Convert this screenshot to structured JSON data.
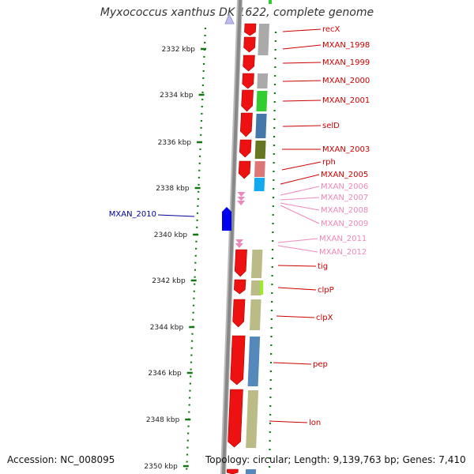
{
  "title": "Myxococcus xanthus DK 1622, complete genome",
  "footer": {
    "accession": "Accession: NC_008095",
    "topology": "Topology: circular; Length: 9,139,763 bp; Genes: 7,410"
  },
  "scale": {
    "unit": "kbp",
    "ticks": [
      {
        "label": "2332 kbp"
      },
      {
        "label": "2334 kbp"
      },
      {
        "label": "2336 kbp"
      },
      {
        "label": "2338 kbp"
      },
      {
        "label": "2340 kbp"
      },
      {
        "label": "2342 kbp"
      },
      {
        "label": "2344 kbp"
      },
      {
        "label": "2346 kbp"
      },
      {
        "label": "2348 kbp"
      },
      {
        "label": "2350 kbp"
      }
    ]
  },
  "colors": {
    "gene_forward": "#ee1111",
    "gene_reverse": "#0000ee",
    "label_red": "#cc0000",
    "label_pink": "#ee88bb",
    "label_blue": "#000099",
    "tick": "#117711",
    "backbone": "#888888"
  },
  "genes": [
    {
      "name": "recX",
      "style": "red"
    },
    {
      "name": "MXAN_1998",
      "style": "red"
    },
    {
      "name": "MXAN_1999",
      "style": "red"
    },
    {
      "name": "MXAN_2000",
      "style": "red"
    },
    {
      "name": "MXAN_2001",
      "style": "red"
    },
    {
      "name": "selD",
      "style": "red"
    },
    {
      "name": "MXAN_2003",
      "style": "red"
    },
    {
      "name": "rph",
      "style": "red"
    },
    {
      "name": "MXAN_2005",
      "style": "red"
    },
    {
      "name": "MXAN_2006",
      "style": "pink"
    },
    {
      "name": "MXAN_2007",
      "style": "pink"
    },
    {
      "name": "MXAN_2008",
      "style": "pink"
    },
    {
      "name": "MXAN_2009",
      "style": "pink"
    },
    {
      "name": "MXAN_2010",
      "style": "blue"
    },
    {
      "name": "MXAN_2011",
      "style": "pink"
    },
    {
      "name": "MXAN_2012",
      "style": "pink"
    },
    {
      "name": "tig",
      "style": "red"
    },
    {
      "name": "clpP",
      "style": "red"
    },
    {
      "name": "clpX",
      "style": "red"
    },
    {
      "name": "pep",
      "style": "red"
    },
    {
      "name": "lon",
      "style": "red"
    }
  ]
}
